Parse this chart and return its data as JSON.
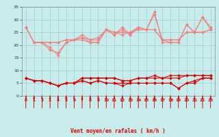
{
  "x": [
    0,
    1,
    2,
    3,
    4,
    5,
    6,
    7,
    8,
    9,
    10,
    11,
    12,
    13,
    14,
    15,
    16,
    17,
    18,
    19,
    20,
    21,
    22,
    23
  ],
  "series_light": [
    [
      27,
      21,
      21,
      19,
      16,
      21,
      22,
      23,
      21,
      21,
      26,
      24,
      27,
      24,
      27,
      26,
      33,
      21,
      21,
      21,
      28,
      25,
      31,
      26
    ],
    [
      27,
      21,
      21,
      18,
      17,
      21,
      22,
      22,
      21,
      21,
      26,
      24,
      26,
      24,
      27,
      26,
      32,
      22,
      21,
      21,
      28,
      25,
      31,
      27
    ],
    [
      27,
      21,
      21,
      21,
      21,
      22,
      22,
      23,
      22,
      22,
      26,
      25,
      24,
      25,
      27,
      26,
      26,
      22,
      22,
      22,
      25,
      25,
      25,
      26
    ],
    [
      27,
      21,
      21,
      21,
      21,
      22,
      22,
      24,
      22,
      23,
      26,
      25,
      25,
      25,
      26,
      26,
      26,
      22,
      22,
      22,
      25,
      25,
      25,
      26
    ]
  ],
  "series_dark": [
    [
      7,
      6,
      6,
      5,
      4,
      5,
      5,
      7,
      7,
      7,
      7,
      7,
      6,
      6,
      7,
      7,
      7,
      7,
      8,
      8,
      8,
      8,
      8,
      8
    ],
    [
      7,
      6,
      6,
      5,
      4,
      5,
      5,
      7,
      7,
      7,
      7,
      7,
      6,
      6,
      7,
      7,
      8,
      7,
      7,
      7,
      8,
      8,
      8,
      8
    ],
    [
      7,
      6,
      6,
      5,
      4,
      5,
      5,
      6,
      5,
      6,
      5,
      5,
      5,
      5,
      5,
      5,
      5,
      5,
      5,
      3,
      5,
      6,
      7,
      7
    ],
    [
      7,
      6,
      6,
      5,
      4,
      5,
      5,
      6,
      5,
      6,
      5,
      5,
      4,
      5,
      5,
      5,
      5,
      5,
      5,
      3,
      5,
      5,
      7,
      7
    ]
  ],
  "light_color": "#f08080",
  "dark_color": "#dd0000",
  "bg_color": "#c8ecec",
  "grid_color": "#a0cccc",
  "xlabel": "Vent moyen/en rafales ( km/h )",
  "ylim": [
    0,
    35
  ],
  "xlim": [
    -0.5,
    23.5
  ],
  "yticks": [
    0,
    5,
    10,
    15,
    20,
    25,
    30,
    35
  ],
  "xticks": [
    0,
    1,
    2,
    3,
    4,
    5,
    6,
    7,
    8,
    9,
    10,
    11,
    12,
    13,
    14,
    15,
    16,
    17,
    18,
    19,
    20,
    21,
    22,
    23
  ],
  "arrow_color": "#dd0000",
  "markersize": 2.0,
  "linewidth": 0.8
}
